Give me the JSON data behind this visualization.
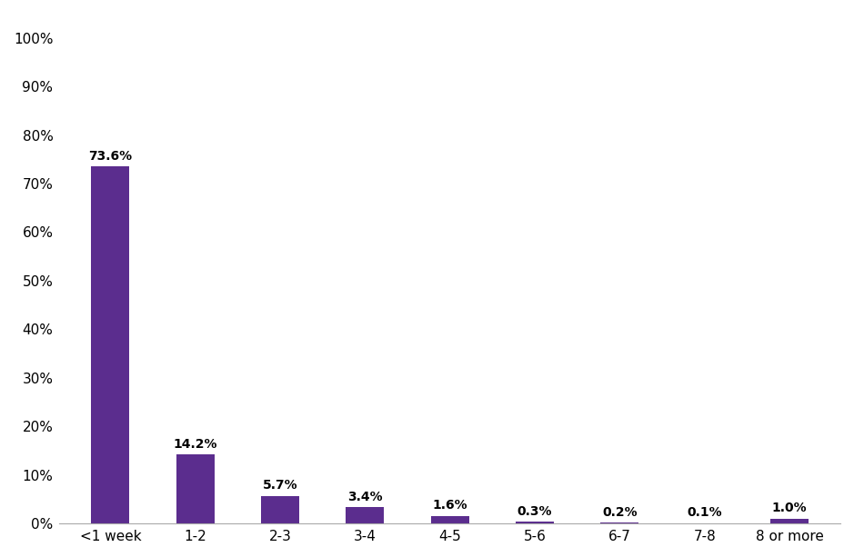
{
  "categories": [
    "<1 week",
    "1-2",
    "2-3",
    "3-4",
    "4-5",
    "5-6",
    "6-7",
    "7-8",
    "8 or more"
  ],
  "values": [
    73.6,
    14.2,
    5.7,
    3.4,
    1.6,
    0.3,
    0.2,
    0.1,
    1.0
  ],
  "labels": [
    "73.6%",
    "14.2%",
    "5.7%",
    "3.4%",
    "1.6%",
    "0.3%",
    "0.2%",
    "0.1%",
    "1.0%"
  ],
  "bar_color": "#5b2d8e",
  "ylim": [
    0,
    105
  ],
  "yticks": [
    0,
    10,
    20,
    30,
    40,
    50,
    60,
    70,
    80,
    90,
    100
  ],
  "ytick_labels": [
    "0%",
    "10%",
    "20%",
    "30%",
    "40%",
    "50%",
    "60%",
    "70%",
    "80%",
    "90%",
    "100%"
  ],
  "background_color": "#ffffff",
  "label_fontsize": 10,
  "tick_fontsize": 11,
  "bar_width": 0.45
}
